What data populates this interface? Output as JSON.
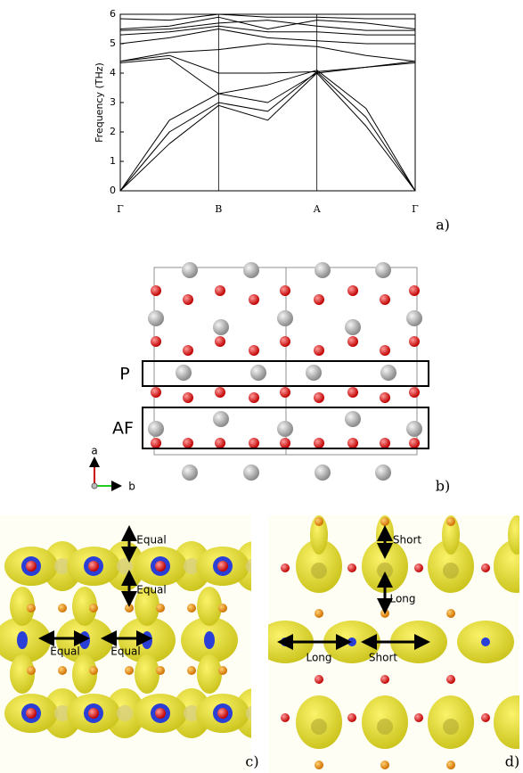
{
  "chart_data": {
    "type": "line",
    "label": "a)",
    "ylabel": "Frequency (THz)",
    "x": [
      0,
      0.5,
      1,
      1.5,
      2,
      2.5,
      3
    ],
    "xlim": [
      0,
      3
    ],
    "xticks": [
      {
        "value": 0,
        "label": "Γ"
      },
      {
        "value": 1,
        "label": "B"
      },
      {
        "value": 2,
        "label": "A"
      },
      {
        "value": 3,
        "label": "Γ"
      }
    ],
    "ylim": [
      0,
      6
    ],
    "yticks": [
      0,
      1,
      2,
      3,
      4,
      5,
      6
    ],
    "series": [
      {
        "color": "#000000",
        "values": [
          0,
          1.6,
          2.9,
          2.4,
          4.0,
          2.2,
          0
        ]
      },
      {
        "color": "#000000",
        "values": [
          0,
          2.0,
          3.0,
          2.7,
          4.05,
          2.5,
          0
        ]
      },
      {
        "color": "#000000",
        "values": [
          0,
          2.4,
          3.3,
          3.6,
          4.1,
          2.8,
          0
        ]
      },
      {
        "color": "#000000",
        "values": [
          4.35,
          4.5,
          3.3,
          3.0,
          4.0,
          4.2,
          4.35
        ]
      },
      {
        "color": "#000000",
        "values": [
          4.4,
          4.6,
          4.0,
          4.0,
          4.05,
          4.2,
          4.4
        ]
      },
      {
        "color": "#000000",
        "values": [
          4.4,
          4.7,
          4.8,
          5.0,
          4.9,
          4.6,
          4.4
        ]
      },
      {
        "color": "#000000",
        "values": [
          5.0,
          5.2,
          5.5,
          5.2,
          5.1,
          5.0,
          5.0
        ]
      },
      {
        "color": "#000000",
        "values": [
          5.3,
          5.4,
          5.6,
          5.4,
          5.4,
          5.3,
          5.3
        ]
      },
      {
        "color": "#000000",
        "values": [
          5.45,
          5.5,
          5.7,
          5.8,
          5.6,
          5.45,
          5.45
        ]
      },
      {
        "color": "#000000",
        "values": [
          5.5,
          5.6,
          5.9,
          5.5,
          5.8,
          5.7,
          5.5
        ]
      },
      {
        "color": "#000000",
        "values": [
          5.85,
          5.8,
          6.0,
          5.9,
          5.9,
          5.85,
          5.85
        ]
      }
    ]
  },
  "panel_b": {
    "label": "b)",
    "layers": [
      "P",
      "AF"
    ],
    "axes": [
      "a",
      "b"
    ]
  },
  "panel_c": {
    "label": "c)",
    "annotations": [
      "Equal",
      "Equal",
      "Equal",
      "Equal"
    ]
  },
  "panel_d": {
    "label": "d)",
    "annotations": [
      "Short",
      "Long",
      "Long",
      "Short"
    ]
  }
}
